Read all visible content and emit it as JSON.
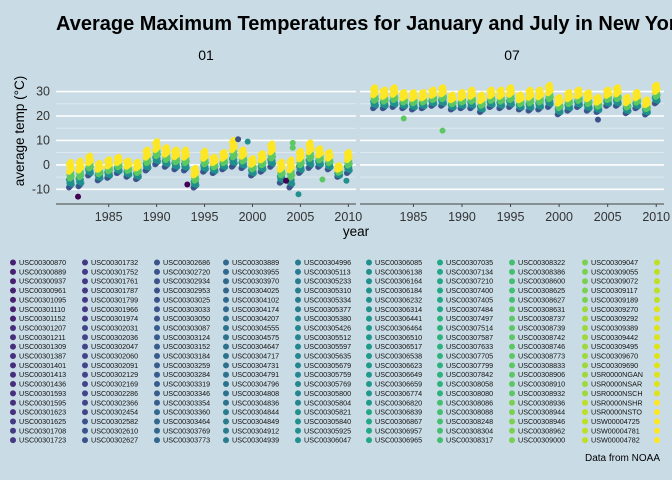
{
  "chart_data": {
    "type": "scatter",
    "title": "Average Maximum Temperatures for January and July in New York",
    "ylabel": "average temp (°C)",
    "xlabel": "year",
    "caption": "Data from NOAA",
    "x_ticks": [
      1985,
      1990,
      1995,
      2000,
      2005,
      2010
    ],
    "y_ticks": [
      -10,
      0,
      10,
      20,
      30
    ],
    "xlim": [
      1979.5,
      2010.8
    ],
    "ylim": [
      -16,
      38
    ],
    "grid": true,
    "legend_position": "bottom",
    "colors": [
      "#440154",
      "#3b528b",
      "#21908d",
      "#5dc863",
      "#fde725"
    ],
    "panels": [
      {
        "label": "01",
        "summary": [
          {
            "year": 1981,
            "lo": -9.5,
            "hi": 1.5
          },
          {
            "year": 1982,
            "lo": -9,
            "hi": 2
          },
          {
            "year": 1983,
            "lo": -4.5,
            "hi": 4
          },
          {
            "year": 1984,
            "lo": -6.5,
            "hi": 1
          },
          {
            "year": 1985,
            "lo": -5.5,
            "hi": 2.5
          },
          {
            "year": 1986,
            "lo": -3.5,
            "hi": 3.5
          },
          {
            "year": 1987,
            "lo": -5,
            "hi": 2
          },
          {
            "year": 1988,
            "lo": -6,
            "hi": 1.5
          },
          {
            "year": 1989,
            "lo": -2.5,
            "hi": 6.5
          },
          {
            "year": 1990,
            "lo": 0,
            "hi": 10
          },
          {
            "year": 1991,
            "lo": -1,
            "hi": 7.5
          },
          {
            "year": 1992,
            "lo": -2,
            "hi": 6.5
          },
          {
            "year": 1993,
            "lo": -2.5,
            "hi": 6.5
          },
          {
            "year": 1994,
            "lo": -9.5,
            "hi": -1
          },
          {
            "year": 1995,
            "lo": -3,
            "hi": 6
          },
          {
            "year": 1996,
            "lo": -3.5,
            "hi": 3.5
          },
          {
            "year": 1997,
            "lo": -2,
            "hi": 5.5
          },
          {
            "year": 1998,
            "lo": -1,
            "hi": 10.5
          },
          {
            "year": 1999,
            "lo": -1.5,
            "hi": 6.5
          },
          {
            "year": 2000,
            "lo": -4.5,
            "hi": 3
          },
          {
            "year": 2001,
            "lo": -3,
            "hi": 5
          },
          {
            "year": 2002,
            "lo": -1,
            "hi": 9
          },
          {
            "year": 2003,
            "lo": -7.5,
            "hi": 1.5
          },
          {
            "year": 2004,
            "lo": -9.5,
            "hi": 2.5
          },
          {
            "year": 2005,
            "lo": -3.5,
            "hi": 6
          },
          {
            "year": 2006,
            "lo": -1.5,
            "hi": 9.5
          },
          {
            "year": 2007,
            "lo": -1,
            "hi": 7
          },
          {
            "year": 2008,
            "lo": -2,
            "hi": 5.5
          },
          {
            "year": 2009,
            "lo": -5,
            "hi": 0
          },
          {
            "year": 2010,
            "lo": -3.5,
            "hi": 5.5
          }
        ],
        "outliers": [
          {
            "year": 1981.8,
            "value": -13,
            "color": "#440154"
          },
          {
            "year": 1993.2,
            "value": -8,
            "color": "#440154"
          },
          {
            "year": 1998.5,
            "value": 10.5,
            "color": "#3b528b"
          },
          {
            "year": 1999.5,
            "value": 9.5,
            "color": "#21908d"
          },
          {
            "year": 2003.5,
            "value": -6.5,
            "color": "#440154"
          },
          {
            "year": 2004.2,
            "value": 9,
            "color": "#5dc863"
          },
          {
            "year": 2004.2,
            "value": 7,
            "color": "#5dc863"
          },
          {
            "year": 2004.8,
            "value": -12,
            "color": "#21908d"
          },
          {
            "year": 2007.3,
            "value": -6,
            "color": "#5dc863"
          },
          {
            "year": 2009.8,
            "value": -6.5,
            "color": "#21908d"
          }
        ]
      },
      {
        "label": "07",
        "summary": [
          {
            "year": 1981,
            "lo": 23,
            "hi": 32
          },
          {
            "year": 1982,
            "lo": 23,
            "hi": 31
          },
          {
            "year": 1983,
            "lo": 23.5,
            "hi": 32
          },
          {
            "year": 1984,
            "lo": 23,
            "hi": 30
          },
          {
            "year": 1985,
            "lo": 22.5,
            "hi": 30
          },
          {
            "year": 1986,
            "lo": 23,
            "hi": 30
          },
          {
            "year": 1987,
            "lo": 24,
            "hi": 31
          },
          {
            "year": 1988,
            "lo": 24,
            "hi": 32
          },
          {
            "year": 1989,
            "lo": 22.5,
            "hi": 29
          },
          {
            "year": 1990,
            "lo": 23,
            "hi": 30
          },
          {
            "year": 1991,
            "lo": 23,
            "hi": 31
          },
          {
            "year": 1992,
            "lo": 21.5,
            "hi": 29
          },
          {
            "year": 1993,
            "lo": 23.5,
            "hi": 31
          },
          {
            "year": 1994,
            "lo": 23,
            "hi": 31
          },
          {
            "year": 1995,
            "lo": 23.5,
            "hi": 32
          },
          {
            "year": 1996,
            "lo": 22.5,
            "hi": 29
          },
          {
            "year": 1997,
            "lo": 22,
            "hi": 31
          },
          {
            "year": 1998,
            "lo": 22.5,
            "hi": 31
          },
          {
            "year": 1999,
            "lo": 23.5,
            "hi": 33
          },
          {
            "year": 2000,
            "lo": 20.5,
            "hi": 28
          },
          {
            "year": 2001,
            "lo": 22,
            "hi": 30
          },
          {
            "year": 2002,
            "lo": 23.5,
            "hi": 31
          },
          {
            "year": 2003,
            "lo": 22,
            "hi": 30
          },
          {
            "year": 2004,
            "lo": 21.5,
            "hi": 28
          },
          {
            "year": 2005,
            "lo": 24,
            "hi": 31
          },
          {
            "year": 2006,
            "lo": 24,
            "hi": 32
          },
          {
            "year": 2007,
            "lo": 21,
            "hi": 28
          },
          {
            "year": 2008,
            "lo": 23,
            "hi": 30
          },
          {
            "year": 2009,
            "lo": 20.5,
            "hi": 27
          },
          {
            "year": 2010,
            "lo": 25,
            "hi": 33
          }
        ],
        "outliers": [
          {
            "year": 1984,
            "value": 19,
            "color": "#5dc863"
          },
          {
            "year": 1988,
            "value": 14,
            "color": "#5dc863"
          },
          {
            "year": 2004,
            "value": 18.5,
            "color": "#3b528b"
          }
        ]
      }
    ],
    "legend_columns": [
      [
        "",
        "",
        "",
        "",
        "",
        "",
        "",
        "",
        "",
        "",
        "",
        "",
        "",
        "",
        "",
        "",
        "",
        ""
      ],
      [
        "USC00300870",
        "USC00300889",
        "USC00300937",
        "USC00300961",
        "USC00301095",
        "USC00301110",
        "USC00301152",
        "USC00301207",
        "USC00301211",
        "USC00301309",
        "USC00301387",
        "USC00301401",
        "USC00301413",
        "USC00301436",
        "USC00301593",
        "USC00301595",
        "USC00301623",
        "USC00301625",
        "USC00301708",
        "USC00301723"
      ],
      [
        "USC00301732",
        "USC00301752",
        "USC00301761",
        "USC00301787",
        "USC00301799",
        "USC00301966",
        "USC00301974",
        "USC00302031",
        "USC00302036",
        "USC00302047",
        "USC00302060",
        "USC00302091",
        "USC00302129",
        "USC00302169",
        "USC00302286",
        "USC00302366",
        "USC00302454",
        "USC00302582",
        "USC00302610",
        "USC00302627"
      ],
      [
        "USC00302686",
        "USC00302720",
        "USC00302934",
        "USC00302953",
        "USC00303025",
        "USC00303033",
        "USC00303050",
        "USC00303087",
        "USC00303124",
        "USC00303152",
        "USC00303184",
        "USC00303259",
        "USC00303284",
        "USC00303319",
        "USC00303346",
        "USC00303354",
        "USC00303360",
        "USC00303464",
        "USC00303769",
        "USC00303773"
      ],
      [
        "USC00303889",
        "USC00303955",
        "USC00303970",
        "USC00304025",
        "USC00304102",
        "USC00304174",
        "USC00304207",
        "USC00304555",
        "USC00304575",
        "USC00304647",
        "USC00304717",
        "USC00304731",
        "USC00304791",
        "USC00304796",
        "USC00304808",
        "USC00304836",
        "USC00304844",
        "USC00304849",
        "USC00304912",
        "USC00304939"
      ],
      [
        "USC00304996",
        "USC00305113",
        "USC00305233",
        "USC00305310",
        "USC00305334",
        "USC00305377",
        "USC00305380",
        "USC00305426",
        "USC00305512",
        "USC00305597",
        "USC00305635",
        "USC00305679",
        "USC00305759",
        "USC00305769",
        "USC00305800",
        "USC00305804",
        "USC00305821",
        "USC00305840",
        "USC00305925",
        "USC00306047"
      ],
      [
        "USC00306085",
        "USC00306138",
        "USC00306164",
        "USC00306184",
        "USC00306232",
        "USC00306314",
        "USC00306441",
        "USC00306464",
        "USC00306510",
        "USC00306517",
        "USC00306538",
        "USC00306623",
        "USC00306649",
        "USC00306659",
        "USC00306774",
        "USC00306820",
        "USC00306839",
        "USC00306867",
        "USC00306957",
        "USC00306965"
      ],
      [
        "USC00307035",
        "USC00307134",
        "USC00307210",
        "USC00307400",
        "USC00307405",
        "USC00307484",
        "USC00307497",
        "USC00307514",
        "USC00307587",
        "USC00307633",
        "USC00307705",
        "USC00307799",
        "USC00307842",
        "USC00308058",
        "USC00308080",
        "USC00308086",
        "USC00308088",
        "USC00308248",
        "USC00308304",
        "USC00308317"
      ],
      [
        "USC00308322",
        "USC00308386",
        "USC00308600",
        "USC00308625",
        "USC00308627",
        "USC00308631",
        "USC00308737",
        "USC00308739",
        "USC00308742",
        "USC00308746",
        "USC00308773",
        "USC00308833",
        "USC00308906",
        "USC00308910",
        "USC00308932",
        "USC00308936",
        "USC00308944",
        "USC00308946",
        "USC00308962",
        "USC00309000"
      ],
      [
        "USC00309047",
        "USC00309055",
        "USC00309072",
        "USC00309117",
        "USC00309189",
        "USC00309270",
        "USC00309292",
        "USC00309389",
        "USC00309442",
        "USC00309495",
        "USC00309670",
        "USC00309690",
        "USR0000NGAN",
        "USR0000NSAR",
        "USR0000NSCH",
        "USR0000NSHR",
        "USR0000NSTO",
        "USW00004725",
        "USW00004781",
        "USW00004782"
      ],
      [
        "",
        "",
        "",
        "",
        "",
        "",
        "",
        "",
        "",
        "",
        "",
        "",
        "",
        "",
        "",
        "",
        "",
        "",
        "",
        ""
      ]
    ]
  }
}
